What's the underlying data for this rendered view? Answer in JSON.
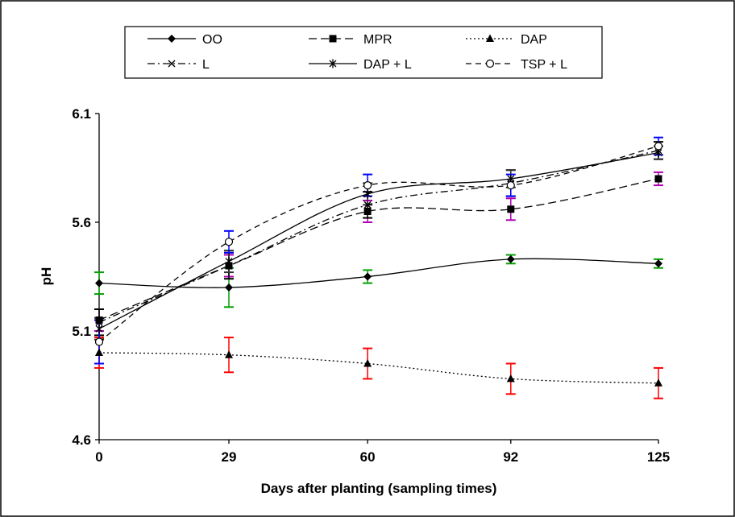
{
  "chart_data": {
    "type": "line",
    "xlabel": "Days after planting (sampling times)",
    "ylabel": "pH",
    "x": [
      0,
      29,
      60,
      92,
      125
    ],
    "xticks": [
      "0",
      "29",
      "60",
      "92",
      "125"
    ],
    "yticks": [
      "4.6",
      "5.1",
      "5.6",
      "6.1"
    ],
    "ylim": [
      4.6,
      6.1
    ],
    "legend_position": "top",
    "series": [
      {
        "name": "OO",
        "values": [
          5.32,
          5.3,
          5.35,
          5.43,
          5.41
        ],
        "errors": [
          0.05,
          0.09,
          0.03,
          0.02,
          0.02
        ],
        "marker": "diamond",
        "dash": "solid",
        "error_color": "#00a000"
      },
      {
        "name": "MPR",
        "values": [
          5.15,
          5.4,
          5.65,
          5.66,
          5.8
        ],
        "errors": [
          0.05,
          0.05,
          0.05,
          0.05,
          0.03
        ],
        "marker": "square",
        "dash": "longdash",
        "error_color": "#b000b0"
      },
      {
        "name": "DAP",
        "values": [
          5.0,
          4.99,
          4.95,
          4.88,
          4.86
        ],
        "errors": [
          0.07,
          0.08,
          0.07,
          0.07,
          0.07
        ],
        "marker": "triangle",
        "dash": "dotted",
        "error_color": "#ff0000"
      },
      {
        "name": "L",
        "values": [
          5.14,
          5.4,
          5.68,
          5.78,
          5.93
        ],
        "errors": [
          0.06,
          0.06,
          0.06,
          0.06,
          0.04
        ],
        "marker": "x",
        "dash": "dashdot",
        "error_color": "#000000"
      },
      {
        "name": "DAP + L",
        "values": [
          5.11,
          5.42,
          5.73,
          5.8,
          5.92
        ],
        "errors": [
          0.05,
          0.05,
          0.05,
          0.04,
          0.03
        ],
        "marker": "star",
        "dash": "solid",
        "error_color": "#333333"
      },
      {
        "name": "TSP + L",
        "values": [
          5.05,
          5.51,
          5.77,
          5.77,
          5.95
        ],
        "errors": [
          0.1,
          0.05,
          0.05,
          0.05,
          0.04
        ],
        "marker": "circle",
        "dash": "dash",
        "error_color": "#0000ff"
      }
    ]
  }
}
